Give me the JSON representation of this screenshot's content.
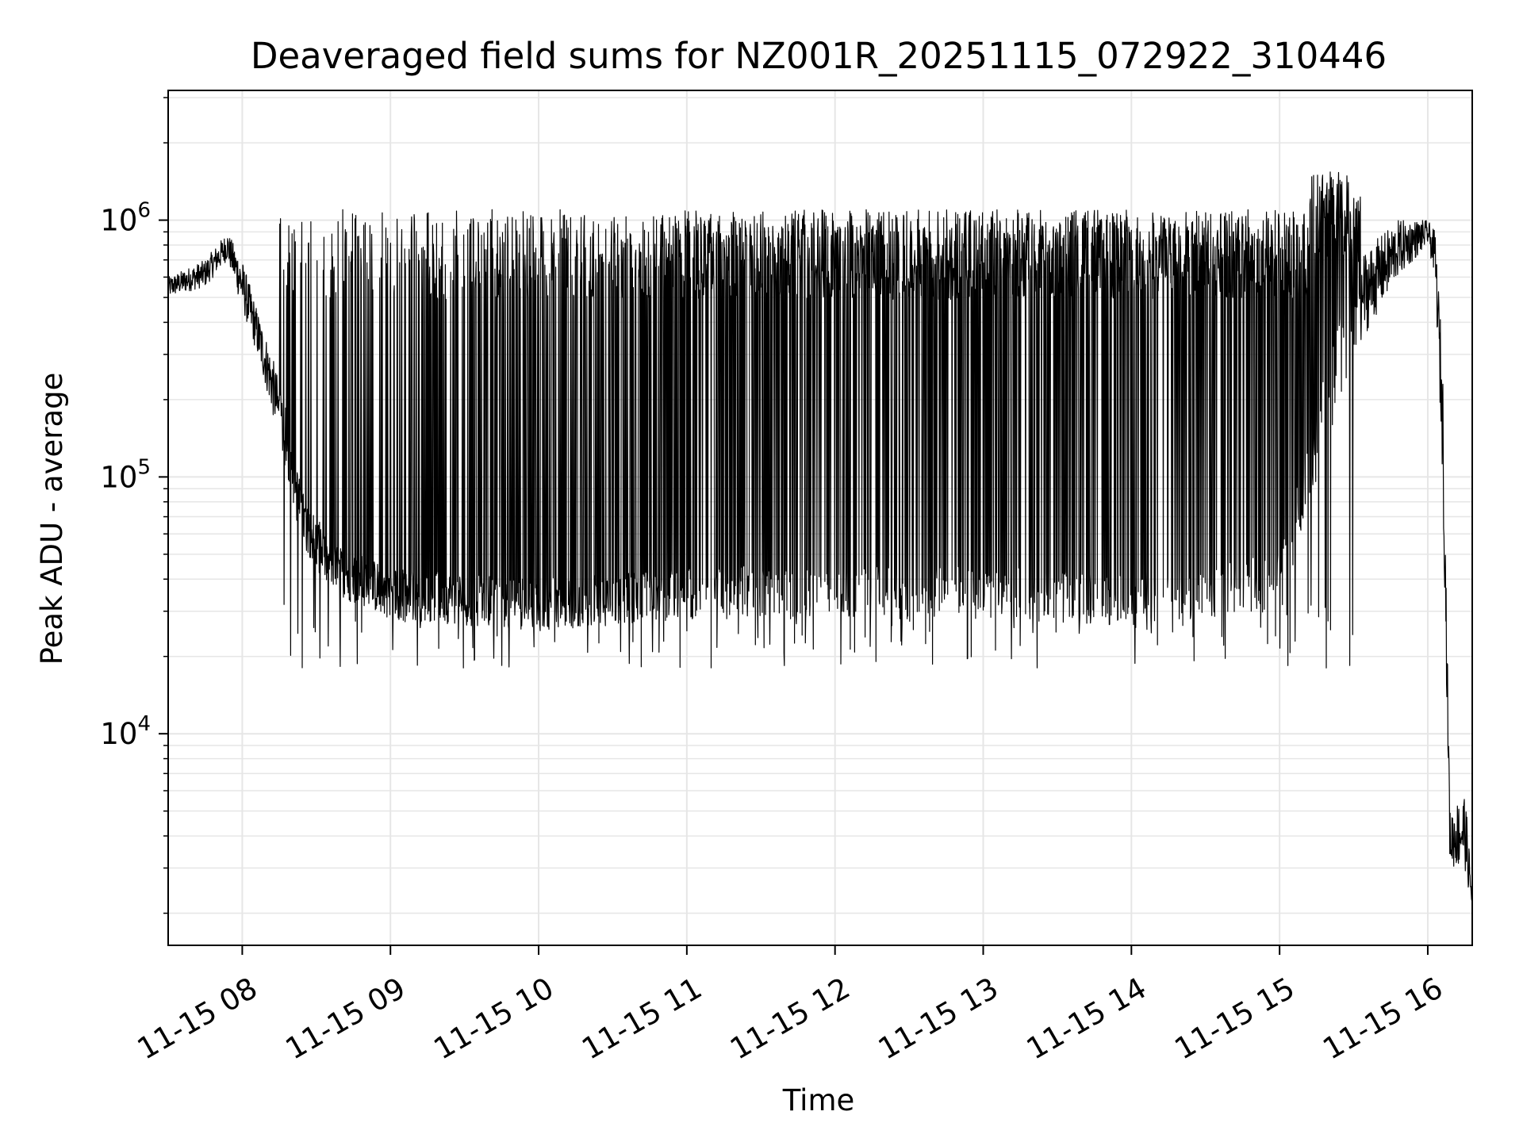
{
  "chart_data": {
    "type": "line",
    "title": "Deaveraged field sums for NZ001R_20251115_072922_310446",
    "xlabel": "Time",
    "ylabel": "Peak ADU - average",
    "yscale": "log",
    "xlim_hours": [
      7.5,
      16.3
    ],
    "ylim": [
      1500,
      3200000
    ],
    "grid": true,
    "line_color": "#000000",
    "grid_color": "#e6e6e6",
    "x_ticks": [
      {
        "hour": 8,
        "label": "11-15 08"
      },
      {
        "hour": 9,
        "label": "11-15 09"
      },
      {
        "hour": 10,
        "label": "11-15 10"
      },
      {
        "hour": 11,
        "label": "11-15 11"
      },
      {
        "hour": 12,
        "label": "11-15 12"
      },
      {
        "hour": 13,
        "label": "11-15 13"
      },
      {
        "hour": 14,
        "label": "11-15 14"
      },
      {
        "hour": 15,
        "label": "11-15 15"
      },
      {
        "hour": 16,
        "label": "11-15 16"
      }
    ],
    "y_ticks": [
      {
        "value": 10000,
        "base": "10",
        "exp": "4"
      },
      {
        "value": 100000,
        "base": "10",
        "exp": "5"
      },
      {
        "value": 1000000,
        "base": "10",
        "exp": "6"
      }
    ],
    "series": [
      {
        "name": "deaveraged field sum",
        "envelope": [
          {
            "hour": 7.5,
            "low": 500000,
            "high": 600000
          },
          {
            "hour": 7.75,
            "low": 550000,
            "high": 700000
          },
          {
            "hour": 7.9,
            "low": 700000,
            "high": 900000
          },
          {
            "hour": 8.0,
            "low": 450000,
            "high": 700000
          },
          {
            "hour": 8.1,
            "low": 300000,
            "high": 450000
          },
          {
            "hour": 8.2,
            "low": 180000,
            "high": 300000
          },
          {
            "hour": 8.3,
            "low": 100000,
            "high": 180000
          },
          {
            "hour": 8.4,
            "low": 55000,
            "high": 90000
          },
          {
            "hour": 8.6,
            "low": 35000,
            "high": 55000
          },
          {
            "hour": 9.0,
            "low": 28000,
            "high": 45000
          },
          {
            "hour": 10.0,
            "low": 25000,
            "high": 40000
          },
          {
            "hour": 11.0,
            "low": 28000,
            "high": 45000
          },
          {
            "hour": 12.0,
            "low": 28000,
            "high": 45000
          },
          {
            "hour": 13.0,
            "low": 28000,
            "high": 45000
          },
          {
            "hour": 14.0,
            "low": 26000,
            "high": 42000
          },
          {
            "hour": 15.0,
            "low": 30000,
            "high": 50000
          },
          {
            "hour": 15.5,
            "low": 300000,
            "high": 700000
          },
          {
            "hour": 15.8,
            "low": 600000,
            "high": 1000000
          },
          {
            "hour": 16.0,
            "low": 800000,
            "high": 1000000
          },
          {
            "hour": 16.05,
            "low": 600000,
            "high": 900000
          },
          {
            "hour": 16.1,
            "low": 100000,
            "high": 300000
          },
          {
            "hour": 16.15,
            "low": 3000,
            "high": 5000
          },
          {
            "hour": 16.25,
            "low": 3000,
            "high": 6000
          },
          {
            "hour": 16.3,
            "low": 2000,
            "high": 2500
          }
        ],
        "spike_band": {
          "start_hour": 8.25,
          "end_hour": 15.55,
          "spike_top": 1100000,
          "dip_bottom": 18000
        }
      }
    ]
  }
}
